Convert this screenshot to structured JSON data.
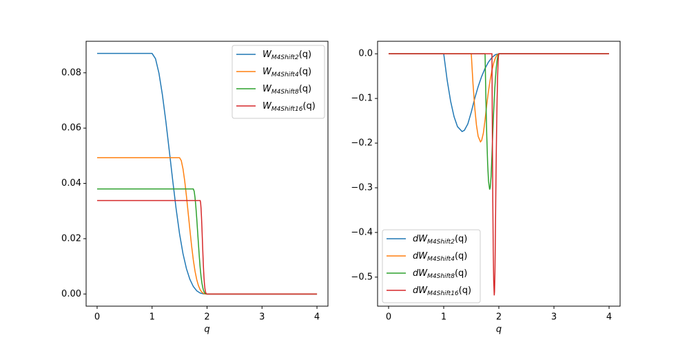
{
  "chart_data": [
    {
      "type": "line",
      "xlabel": "q",
      "xlim": [
        -0.2,
        4.2
      ],
      "ylim": [
        -0.0044,
        0.0914
      ],
      "xticks": [
        0,
        1,
        2,
        3,
        4
      ],
      "yticks": [
        {
          "value": 0,
          "label": "0.00"
        },
        {
          "value": 0.02,
          "label": "0.02"
        },
        {
          "value": 0.04,
          "label": "0.04"
        },
        {
          "value": 0.06,
          "label": "0.06"
        },
        {
          "value": 0.08,
          "label": "0.08"
        }
      ],
      "legend": "upper right",
      "series": [
        {
          "name": "W_{M4Shift2}(q)",
          "color": "#1f77b4",
          "x": [
            0,
            1,
            1.0625,
            1.125,
            1.1875,
            1.25,
            1.3333,
            1.375,
            1.4375,
            1.5,
            1.5625,
            1.625,
            1.6875,
            1.75,
            1.8125,
            1.875,
            1.9375,
            2,
            4
          ],
          "values": [
            0.087,
            0.087,
            0.08509,
            0.07986,
            0.07209,
            0.06253,
            0.04833,
            0.04112,
            0.0308,
            0.02175,
            0.01457,
            0.00918,
            0.00531,
            0.00272,
            0.00115,
            0.00034,
            4e-05,
            0,
            0
          ]
        },
        {
          "name": "W_{M4Shift4}(q)",
          "color": "#ff7f0e",
          "x": [
            0,
            1.5,
            1.5313,
            1.5625,
            1.5938,
            1.625,
            1.6667,
            1.6875,
            1.7188,
            1.75,
            1.7813,
            1.8125,
            1.8438,
            1.875,
            1.9063,
            1.9375,
            1.9688,
            2,
            4
          ],
          "values": [
            0.0493,
            0.0493,
            0.04822,
            0.04526,
            0.04085,
            0.03543,
            0.02739,
            0.0233,
            0.01745,
            0.01233,
            0.00826,
            0.0052,
            0.00301,
            0.00154,
            0.00065,
            0.00019,
            2e-05,
            0,
            0
          ]
        },
        {
          "name": "W_{M4Shift8}(q)",
          "color": "#2ca02c",
          "x": [
            0,
            1.75,
            1.7656,
            1.7813,
            1.7969,
            1.8125,
            1.8333,
            1.8438,
            1.8594,
            1.875,
            1.8906,
            1.9063,
            1.9219,
            1.9375,
            1.9531,
            1.9688,
            1.9844,
            2,
            4
          ],
          "values": [
            0.038,
            0.038,
            0.03717,
            0.03488,
            0.03149,
            0.02731,
            0.02111,
            0.01796,
            0.01345,
            0.0095,
            0.00636,
            0.00401,
            0.00232,
            0.00119,
            0.0005,
            0.00015,
            2e-05,
            0,
            0
          ]
        },
        {
          "name": "W_{M4Shift16}(q)",
          "color": "#d62728",
          "x": [
            0,
            1.875,
            1.8828,
            1.8906,
            1.8984,
            1.9063,
            1.9167,
            1.9219,
            1.9297,
            1.9375,
            1.9453,
            1.9531,
            1.9609,
            1.9688,
            1.9766,
            1.9844,
            1.9922,
            2,
            4
          ],
          "values": [
            0.0338,
            0.0338,
            0.03306,
            0.03103,
            0.02801,
            0.02429,
            0.01878,
            0.01598,
            0.01197,
            0.00845,
            0.00566,
            0.00356,
            0.00206,
            0.00106,
            0.00045,
            0.00013,
            2e-05,
            0,
            0
          ]
        }
      ]
    },
    {
      "type": "line",
      "xlabel": "q",
      "xlim": [
        -0.2,
        4.2
      ],
      "ylim": [
        -0.565,
        0.028
      ],
      "xticks": [
        0,
        1,
        2,
        3,
        4
      ],
      "yticks": [
        {
          "value": 0,
          "label": "0.0"
        },
        {
          "value": -0.1,
          "label": "−0.1"
        },
        {
          "value": -0.2,
          "label": "−0.2"
        },
        {
          "value": -0.3,
          "label": "−0.3"
        },
        {
          "value": -0.4,
          "label": "−0.4"
        },
        {
          "value": -0.5,
          "label": "−0.5"
        }
      ],
      "legend": "lower left",
      "series": [
        {
          "name": "dW_{M4Shift2}(q)",
          "color": "#1f77b4",
          "x": [
            0,
            1,
            1.0625,
            1.125,
            1.1875,
            1.25,
            1.3333,
            1.375,
            1.4375,
            1.5,
            1.5625,
            1.625,
            1.6875,
            1.75,
            1.8125,
            1.875,
            1.9375,
            2,
            4
          ],
          "values": [
            0,
            0,
            -0.0591,
            -0.106,
            -0.1407,
            -0.1631,
            -0.174,
            -0.1713,
            -0.157,
            -0.1305,
            -0.0999,
            -0.0734,
            -0.051,
            -0.0326,
            -0.0184,
            -0.0082,
            -0.002,
            0,
            0
          ]
        },
        {
          "name": "dW_{M4Shift4}(q)",
          "color": "#ff7f0e",
          "x": [
            0,
            1.5,
            1.5313,
            1.5625,
            1.5938,
            1.625,
            1.6667,
            1.6875,
            1.7188,
            1.75,
            1.7813,
            1.8125,
            1.8438,
            1.875,
            1.9063,
            1.9375,
            1.9688,
            2,
            4
          ],
          "values": [
            0,
            0,
            -0.067,
            -0.1202,
            -0.1595,
            -0.1849,
            -0.1972,
            -0.1941,
            -0.1779,
            -0.1479,
            -0.1132,
            -0.0832,
            -0.0578,
            -0.037,
            -0.0208,
            -0.0092,
            -0.0023,
            0,
            0
          ]
        },
        {
          "name": "dW_{M4Shift8}(q)",
          "color": "#2ca02c",
          "x": [
            0,
            1.75,
            1.7656,
            1.7813,
            1.7969,
            1.8125,
            1.8333,
            1.8438,
            1.8594,
            1.875,
            1.8906,
            1.9063,
            1.9219,
            1.9375,
            1.9531,
            1.9688,
            1.9844,
            2,
            4
          ],
          "values": [
            0,
            0,
            -0.1033,
            -0.1853,
            -0.2458,
            -0.285,
            -0.304,
            -0.2993,
            -0.2743,
            -0.228,
            -0.1746,
            -0.1283,
            -0.0891,
            -0.057,
            -0.0321,
            -0.0143,
            -0.0036,
            0,
            0
          ]
        },
        {
          "name": "dW_{M4Shift16}(q)",
          "color": "#d62728",
          "x": [
            0,
            1.875,
            1.8828,
            1.8906,
            1.8984,
            1.9063,
            1.9167,
            1.9219,
            1.9297,
            1.9375,
            1.9453,
            1.9531,
            1.9609,
            1.9688,
            1.9766,
            1.9844,
            1.9922,
            2,
            4
          ],
          "values": [
            0,
            0,
            -0.1838,
            -0.3296,
            -0.4373,
            -0.507,
            -0.5408,
            -0.5324,
            -0.488,
            -0.4056,
            -0.3105,
            -0.2281,
            -0.1585,
            -0.1014,
            -0.0571,
            -0.0254,
            -0.0063,
            0,
            0
          ]
        }
      ]
    }
  ]
}
